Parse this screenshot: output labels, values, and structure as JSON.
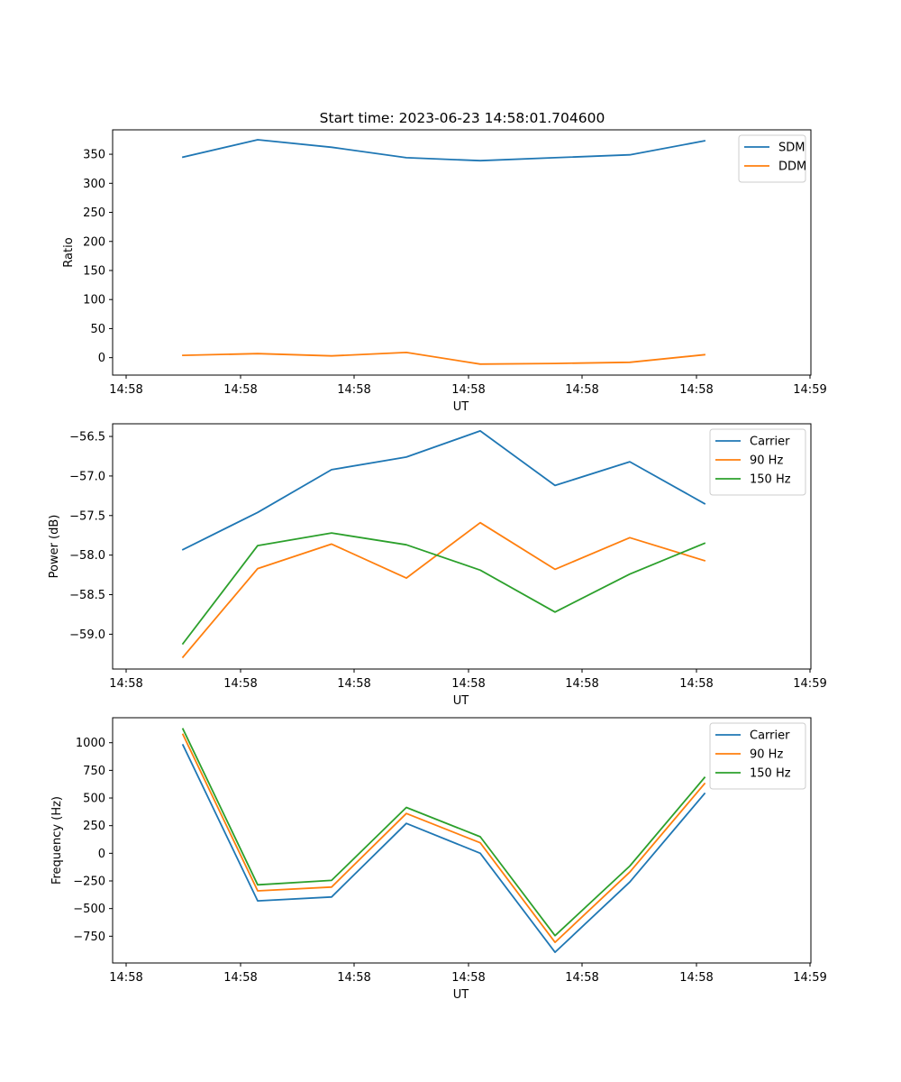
{
  "title": "Start time: 2023-06-23 14:58:01.704600",
  "colors": {
    "c0": "#1f77b4",
    "c1": "#ff7f0e",
    "c2": "#2ca02c"
  },
  "chart_data": [
    {
      "type": "line",
      "ylabel": "Ratio",
      "xlabel": "UT",
      "xticks": [
        "14:58",
        "14:58",
        "14:58",
        "14:58",
        "14:58",
        "14:58",
        "14:59"
      ],
      "ylim": [
        -30,
        392
      ],
      "yticks": [
        0,
        50,
        100,
        150,
        200,
        250,
        300,
        350
      ],
      "legend": "top-right",
      "series": [
        {
          "name": "SDM",
          "values": [
            345,
            375,
            362,
            344,
            339,
            344,
            349,
            373
          ]
        },
        {
          "name": "DDM",
          "values": [
            4,
            7,
            3,
            9,
            -11,
            -10,
            -8,
            5
          ]
        }
      ]
    },
    {
      "type": "line",
      "ylabel": "Power (dB)",
      "xlabel": "UT",
      "xticks": [
        "14:58",
        "14:58",
        "14:58",
        "14:58",
        "14:58",
        "14:58",
        "14:59"
      ],
      "ylim": [
        -59.44,
        -56.34
      ],
      "yticks": [
        -59.0,
        -58.5,
        -58.0,
        -57.5,
        -57.0,
        -56.5
      ],
      "legend": "top-right",
      "series": [
        {
          "name": "Carrier",
          "values": [
            -57.93,
            -57.46,
            -56.92,
            -56.76,
            -56.43,
            -57.12,
            -56.82,
            -57.35
          ]
        },
        {
          "name": "90 Hz",
          "values": [
            -59.29,
            -58.17,
            -57.86,
            -58.29,
            -57.59,
            -58.18,
            -57.78,
            -58.07
          ]
        },
        {
          "name": "150 Hz",
          "values": [
            -59.12,
            -57.88,
            -57.72,
            -57.87,
            -58.19,
            -58.72,
            -58.24,
            -57.85
          ]
        }
      ]
    },
    {
      "type": "line",
      "ylabel": "Frequency (Hz)",
      "xlabel": "UT",
      "xticks": [
        "14:58",
        "14:58",
        "14:58",
        "14:58",
        "14:58",
        "14:58",
        "14:59"
      ],
      "ylim": [
        -992,
        1226
      ],
      "yticks": [
        -750,
        -500,
        -250,
        0,
        250,
        500,
        750,
        1000
      ],
      "legend": "top-right",
      "series": [
        {
          "name": "Carrier",
          "values": [
            980,
            -430,
            -395,
            270,
            0,
            -895,
            -260,
            540
          ]
        },
        {
          "name": "90 Hz",
          "values": [
            1075,
            -340,
            -305,
            360,
            95,
            -805,
            -170,
            630
          ]
        },
        {
          "name": "150 Hz",
          "values": [
            1125,
            -285,
            -245,
            415,
            150,
            -745,
            -115,
            685
          ]
        }
      ]
    }
  ]
}
